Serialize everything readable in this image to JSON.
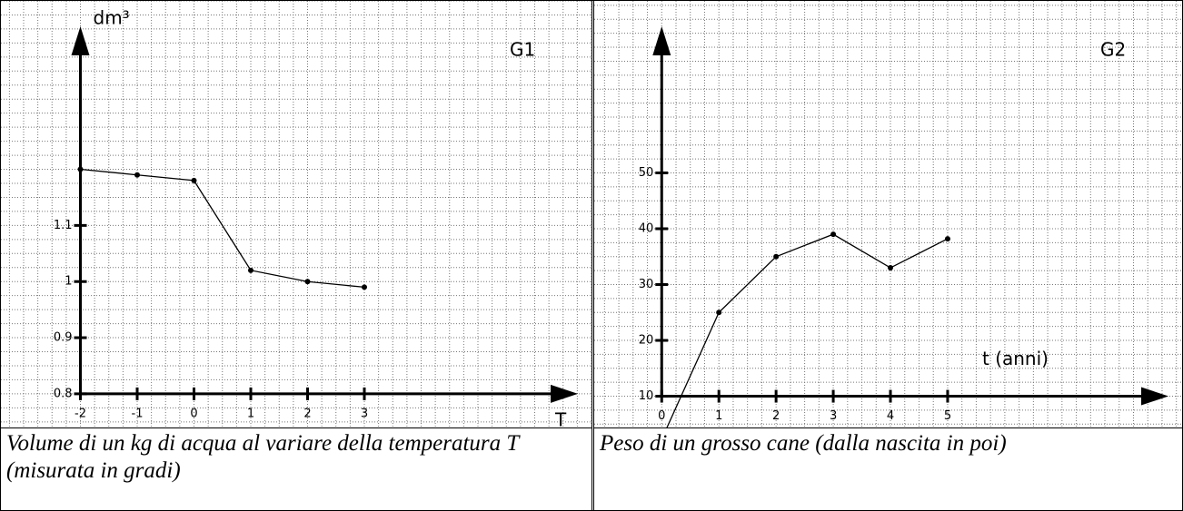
{
  "chart_data": [
    {
      "type": "line",
      "annotation": "G1",
      "y_label": "dm³",
      "x_label": "T",
      "caption": "Volume di un kg di acqua al variare della temperatura T (misurata in gradi)",
      "x": [
        -2,
        -1,
        0,
        1,
        2,
        3
      ],
      "series": [
        {
          "color": "#000000",
          "values": [
            1.2,
            1.19,
            1.18,
            1.02,
            1.0,
            0.99
          ]
        }
      ],
      "xlim": [
        -3.4,
        7
      ],
      "ylim": [
        0.74,
        1.5
      ],
      "xticks": [
        -2,
        -1,
        0,
        1,
        2,
        3
      ],
      "yticks": [
        0.8,
        0.9,
        1,
        1.1
      ],
      "grid": true
    },
    {
      "type": "line",
      "annotation": "G2",
      "x_label": "t (anni)",
      "caption": "Peso di un grosso cane (dalla nascita in poi)",
      "x": [
        0,
        1,
        2,
        3,
        4,
        5
      ],
      "series": [
        {
          "color": "#000000",
          "values": [
            2.3,
            25,
            35,
            39,
            33,
            38.2
          ]
        }
      ],
      "xlim": [
        -1.18,
        9.1
      ],
      "ylim": [
        4.4,
        80.8
      ],
      "xticks": [
        0,
        1,
        2,
        3,
        4,
        5
      ],
      "yticks": [
        10,
        20,
        30,
        40,
        50
      ],
      "grid": true
    }
  ]
}
